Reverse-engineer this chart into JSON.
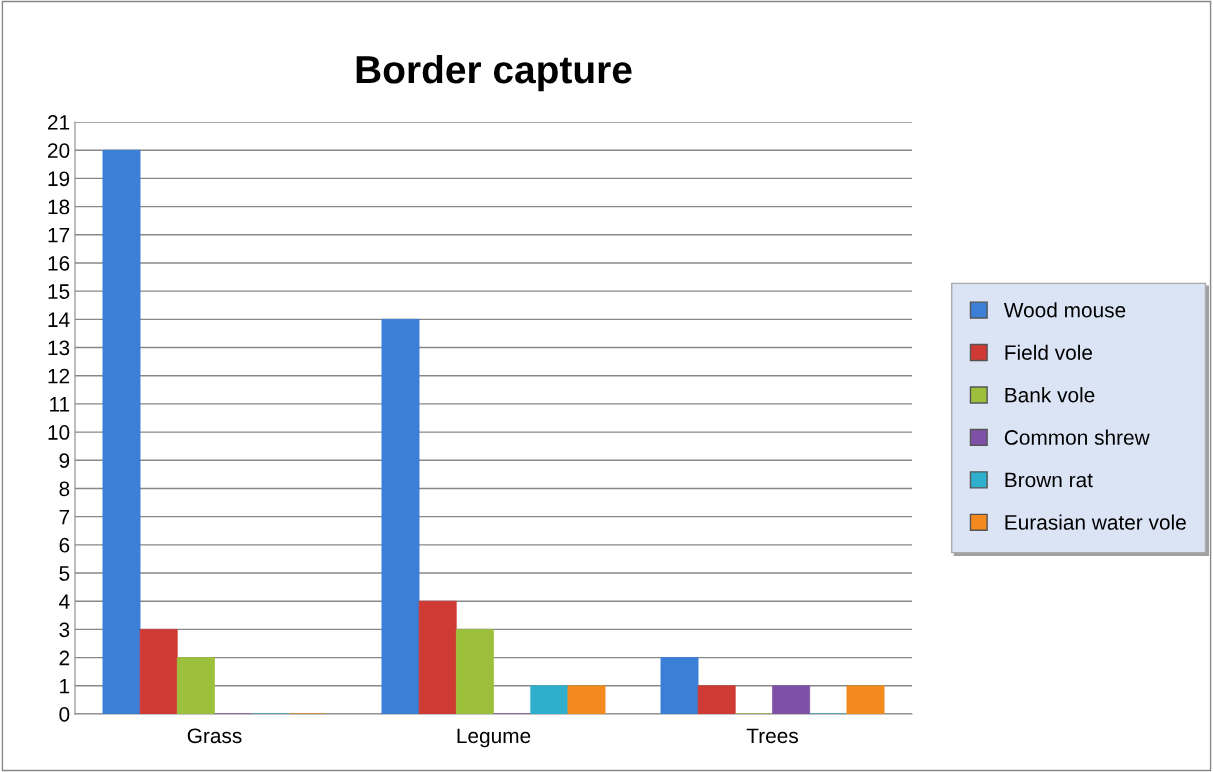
{
  "chart_data": {
    "type": "bar",
    "title": "Border capture",
    "categories": [
      "Grass",
      "Legume",
      "Trees"
    ],
    "series": [
      {
        "name": "Wood mouse",
        "color": "#3b7fd6",
        "values": [
          20,
          14,
          2
        ]
      },
      {
        "name": "Field vole",
        "color": "#cf3a34",
        "values": [
          3,
          4,
          1
        ]
      },
      {
        "name": "Bank vole",
        "color": "#9cc03c",
        "values": [
          2,
          3,
          0
        ]
      },
      {
        "name": "Common shrew",
        "color": "#7e51a6",
        "values": [
          0,
          0,
          1
        ]
      },
      {
        "name": "Brown rat",
        "color": "#2eafcb",
        "values": [
          0,
          1,
          0
        ]
      },
      {
        "name": "Eurasian water vole",
        "color": "#f28a1e",
        "values": [
          0,
          1,
          1
        ]
      }
    ],
    "ylim": [
      0,
      21
    ],
    "yticks": [
      0,
      1,
      2,
      3,
      4,
      5,
      6,
      7,
      8,
      9,
      10,
      11,
      12,
      13,
      14,
      15,
      16,
      17,
      18,
      19,
      20,
      21
    ],
    "grid": "y",
    "legend": "right"
  }
}
